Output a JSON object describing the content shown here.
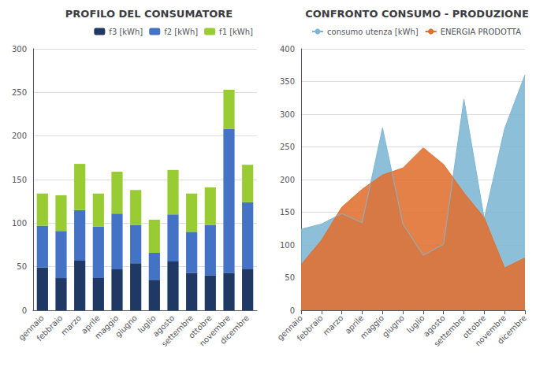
{
  "chart_data": [
    {
      "type": "bar",
      "title": "PROFILO DEL CONSUMATORE",
      "stacked": true,
      "categories": [
        "gennaio",
        "febbraio",
        "marzo",
        "aprile",
        "maggio",
        "giugno",
        "luglio",
        "agosto",
        "settembre",
        "ottobre",
        "novembre",
        "dicembre"
      ],
      "series": [
        {
          "name": "f3 [kWh]",
          "color": "#1f3864",
          "values": [
            49,
            37,
            57,
            37,
            47,
            54,
            35,
            56,
            43,
            40,
            43,
            47
          ]
        },
        {
          "name": "f2 [kWh]",
          "color": "#4472c4",
          "values": [
            48,
            54,
            58,
            59,
            64,
            44,
            31,
            54,
            47,
            58,
            165,
            77
          ]
        },
        {
          "name": "f1 [kWh]",
          "color": "#99cc33",
          "values": [
            37,
            41,
            53,
            38,
            48,
            40,
            38,
            51,
            44,
            43,
            45,
            43
          ]
        }
      ],
      "ylim": [
        0,
        300
      ],
      "yticks": [
        0,
        50,
        100,
        150,
        200,
        250,
        300
      ],
      "grid": true,
      "legend": "upper right"
    },
    {
      "type": "area",
      "title": "CONFRONTO CONSUMO - PRODUZIONE",
      "categories": [
        "gennaio",
        "febbraio",
        "marzo",
        "aprile",
        "maggio",
        "giugno",
        "luglio",
        "agosto",
        "settembre",
        "ottobre",
        "novembre",
        "dicembre"
      ],
      "series": [
        {
          "name": "consumo utenza [kWh]",
          "color": "#7eb6d4",
          "values": [
            124,
            132,
            148,
            134,
            279,
            132,
            84,
            101,
            323,
            140,
            278,
            360
          ]
        },
        {
          "name": "ENERGIA PRODOTTA",
          "color": "#e07030",
          "values": [
            69.93,
            107.12,
            157.8,
            185.13,
            207.13,
            217.59,
            248.61,
            223.17,
            179.78,
            141.6,
            64.88,
            80.18
          ]
        }
      ],
      "ylim": [
        0,
        400
      ],
      "yticks": [
        0,
        50,
        100,
        150,
        200,
        250,
        300,
        350,
        400
      ],
      "grid": true,
      "legend": "upper right"
    }
  ]
}
